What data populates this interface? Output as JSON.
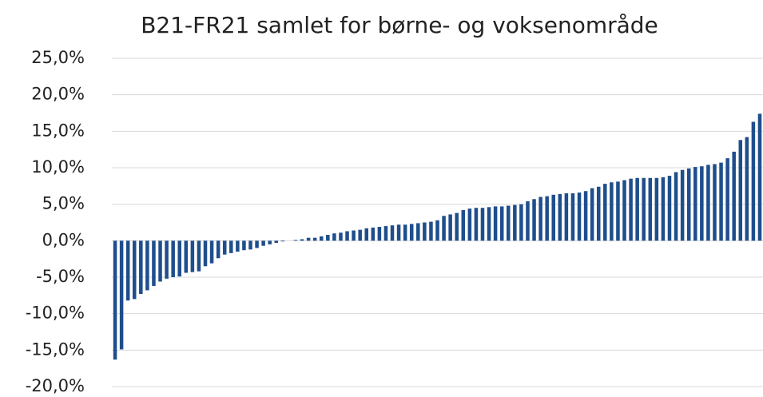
{
  "chart_data": {
    "type": "bar",
    "title": "B21-FR21 samlet for børne- og voksenområde",
    "categories": [
      null,
      null,
      null,
      null,
      null,
      null,
      null,
      null,
      null,
      null,
      null,
      null,
      null,
      null,
      null,
      null,
      null,
      null,
      null,
      null,
      null,
      null,
      null,
      null,
      null,
      null,
      null,
      null,
      null,
      null,
      null,
      null,
      null,
      null,
      null,
      null,
      null,
      null,
      null,
      null,
      null,
      null,
      null,
      null,
      null,
      null,
      null,
      null,
      null,
      null,
      null,
      null,
      null,
      null,
      null,
      null,
      null,
      null,
      null,
      null,
      null,
      null,
      null,
      null,
      null,
      null,
      null,
      null,
      null,
      null,
      null,
      null,
      null,
      null,
      null,
      null,
      null,
      null,
      null,
      null,
      null,
      null,
      null,
      null,
      null,
      null,
      null,
      null,
      null,
      null,
      null,
      null,
      null,
      null,
      null,
      null,
      null,
      null,
      null,
      null,
      null
    ],
    "values": [
      -16.3,
      -14.9,
      -8.2,
      -8.0,
      -7.3,
      -6.8,
      -6.2,
      -5.6,
      -5.2,
      -5.0,
      -4.9,
      -4.4,
      -4.3,
      -4.2,
      -3.5,
      -3.1,
      -2.4,
      -1.9,
      -1.7,
      -1.5,
      -1.3,
      -1.2,
      -1.0,
      -0.7,
      -0.5,
      -0.3,
      -0.1,
      0.0,
      0.1,
      0.2,
      0.4,
      0.4,
      0.6,
      0.8,
      1.0,
      1.1,
      1.3,
      1.4,
      1.5,
      1.7,
      1.8,
      1.9,
      2.0,
      2.1,
      2.2,
      2.2,
      2.3,
      2.4,
      2.5,
      2.6,
      2.8,
      3.4,
      3.6,
      3.8,
      4.2,
      4.4,
      4.5,
      4.5,
      4.6,
      4.7,
      4.7,
      4.8,
      4.9,
      5.0,
      5.4,
      5.7,
      6.0,
      6.1,
      6.3,
      6.4,
      6.5,
      6.5,
      6.6,
      6.8,
      7.2,
      7.4,
      7.8,
      8.0,
      8.1,
      8.3,
      8.5,
      8.6,
      8.6,
      8.6,
      8.6,
      8.7,
      8.9,
      9.4,
      9.7,
      9.9,
      10.1,
      10.2,
      10.4,
      10.5,
      10.7,
      11.3,
      12.2,
      13.8,
      14.2,
      16.3,
      17.4
    ],
    "color": "#1f4e8c",
    "ylim": [
      -20,
      25
    ],
    "yticks": [
      {
        "value": -20,
        "label": "-20,0%"
      },
      {
        "value": -15,
        "label": "-15,0%"
      },
      {
        "value": -10,
        "label": "-10,0%"
      },
      {
        "value": -5,
        "label": "-5,0%"
      },
      {
        "value": 0,
        "label": "0,0%"
      },
      {
        "value": 5,
        "label": "5,0%"
      },
      {
        "value": 10,
        "label": "10,0%"
      },
      {
        "value": 15,
        "label": "15,0%"
      },
      {
        "value": 20,
        "label": "20,0%"
      },
      {
        "value": 25,
        "label": "25,0%"
      }
    ],
    "grid": true
  }
}
